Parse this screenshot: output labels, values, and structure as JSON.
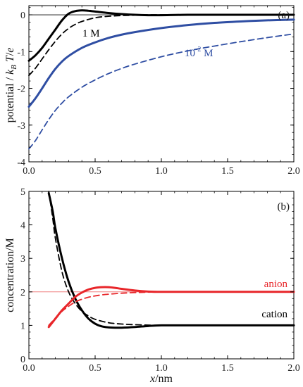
{
  "chart_data": [
    {
      "type": "line",
      "panel_label": "(a)",
      "ylabel": "potential / k_B T/e",
      "ylabel_parts": {
        "pre": "potential / ",
        "k": "k",
        "B": "B",
        "T": "T",
        "slash": "/",
        "e": "e"
      },
      "xlim": [
        0.0,
        2.0
      ],
      "ylim": [
        -4,
        0.25
      ],
      "xticks": [
        "0.0",
        "0.5",
        "1.0",
        "1.5",
        "2.0"
      ],
      "yticks": [
        "0",
        "-1",
        "-2",
        "-3",
        "-4"
      ],
      "grid": false,
      "annotations": [
        {
          "text": "1 M",
          "color": "#000000"
        },
        {
          "text": "10",
          "sup": "-2",
          "suffix": " M",
          "color": "#2f4ea3"
        }
      ],
      "series": [
        {
          "color": "#000000",
          "style": "solid",
          "x": [
            0.0,
            0.05,
            0.1,
            0.15,
            0.2,
            0.25,
            0.3,
            0.35,
            0.4,
            0.45,
            0.5,
            0.6,
            0.7,
            0.8,
            0.9,
            1.0,
            1.2,
            1.5,
            2.0
          ],
          "y": [
            -1.25,
            -1.1,
            -0.9,
            -0.65,
            -0.4,
            -0.15,
            0.03,
            0.1,
            0.12,
            0.11,
            0.09,
            0.05,
            0.02,
            0.0,
            -0.01,
            -0.01,
            0.0,
            0.0,
            0.0
          ]
        },
        {
          "color": "#000000",
          "style": "dashed",
          "x": [
            0.0,
            0.05,
            0.1,
            0.15,
            0.2,
            0.25,
            0.3,
            0.35,
            0.4,
            0.5,
            0.6,
            0.7,
            0.8,
            0.9,
            1.0,
            1.2,
            1.5,
            2.0
          ],
          "y": [
            -1.65,
            -1.45,
            -1.2,
            -0.95,
            -0.72,
            -0.52,
            -0.37,
            -0.26,
            -0.18,
            -0.08,
            -0.04,
            -0.02,
            -0.01,
            0.0,
            0.0,
            0.0,
            0.0,
            0.0
          ]
        },
        {
          "color": "#2f4ea3",
          "style": "solid",
          "x": [
            0.0,
            0.05,
            0.1,
            0.15,
            0.2,
            0.25,
            0.3,
            0.4,
            0.5,
            0.6,
            0.7,
            0.8,
            1.0,
            1.2,
            1.4,
            1.6,
            1.8,
            2.0
          ],
          "y": [
            -2.5,
            -2.27,
            -2.0,
            -1.72,
            -1.47,
            -1.27,
            -1.12,
            -0.9,
            -0.75,
            -0.63,
            -0.54,
            -0.47,
            -0.36,
            -0.28,
            -0.22,
            -0.18,
            -0.15,
            -0.13
          ]
        },
        {
          "color": "#2f4ea3",
          "style": "dashed",
          "x": [
            0.0,
            0.05,
            0.1,
            0.15,
            0.2,
            0.25,
            0.3,
            0.4,
            0.5,
            0.6,
            0.7,
            0.8,
            1.0,
            1.2,
            1.4,
            1.6,
            1.8,
            2.0
          ],
          "y": [
            -3.65,
            -3.42,
            -3.13,
            -2.85,
            -2.6,
            -2.4,
            -2.23,
            -1.97,
            -1.77,
            -1.6,
            -1.46,
            -1.34,
            -1.14,
            -0.98,
            -0.85,
            -0.73,
            -0.62,
            -0.52
          ]
        }
      ]
    },
    {
      "type": "line",
      "panel_label": "(b)",
      "ylabel": "concentration/M",
      "xlabel": "x/nm",
      "xlabel_parts": {
        "x": "x",
        "rest": "/nm"
      },
      "xlim": [
        0.0,
        2.0
      ],
      "ylim": [
        0,
        5
      ],
      "xticks": [
        "0.0",
        "0.5",
        "1.0",
        "1.5",
        "2.0"
      ],
      "yticks": [
        "0",
        "1",
        "2",
        "3",
        "4",
        "5"
      ],
      "grid": false,
      "reference_line": {
        "y": 2,
        "color": "#f08080"
      },
      "annotations": [
        {
          "text": "anion",
          "color": "#e8262a"
        },
        {
          "text": "cation",
          "color": "#000000"
        }
      ],
      "series": [
        {
          "color": "#000000",
          "style": "solid",
          "x": [
            0.15,
            0.18,
            0.2,
            0.25,
            0.3,
            0.35,
            0.4,
            0.45,
            0.5,
            0.55,
            0.6,
            0.65,
            0.7,
            0.8,
            0.9,
            1.0,
            1.2,
            1.5,
            2.0
          ],
          "y": [
            4.95,
            4.4,
            3.9,
            3.0,
            2.3,
            1.8,
            1.45,
            1.2,
            1.05,
            0.97,
            0.94,
            0.93,
            0.93,
            0.95,
            0.98,
            1.0,
            1.0,
            1.0,
            1.0
          ]
        },
        {
          "color": "#000000",
          "style": "dashed",
          "x": [
            0.15,
            0.18,
            0.2,
            0.25,
            0.3,
            0.35,
            0.4,
            0.45,
            0.5,
            0.6,
            0.7,
            0.8,
            1.0,
            1.2,
            1.5,
            2.0
          ],
          "y": [
            5.0,
            4.2,
            3.6,
            2.6,
            2.0,
            1.65,
            1.42,
            1.28,
            1.18,
            1.08,
            1.04,
            1.02,
            1.0,
            1.0,
            1.0,
            1.0
          ]
        },
        {
          "color": "#e8262a",
          "style": "solid",
          "x": [
            0.15,
            0.2,
            0.25,
            0.3,
            0.35,
            0.4,
            0.45,
            0.5,
            0.55,
            0.6,
            0.65,
            0.7,
            0.8,
            0.9,
            1.0,
            1.2,
            1.5,
            2.0
          ],
          "y": [
            0.95,
            1.2,
            1.45,
            1.65,
            1.85,
            1.98,
            2.07,
            2.12,
            2.14,
            2.14,
            2.12,
            2.09,
            2.04,
            2.01,
            2.0,
            2.0,
            2.0,
            2.0
          ]
        },
        {
          "color": "#e8262a",
          "style": "dashed",
          "x": [
            0.15,
            0.2,
            0.25,
            0.3,
            0.35,
            0.4,
            0.45,
            0.5,
            0.55,
            0.6,
            0.7,
            0.8,
            0.9,
            1.0,
            1.2,
            1.5,
            2.0
          ],
          "y": [
            1.0,
            1.22,
            1.42,
            1.57,
            1.7,
            1.78,
            1.84,
            1.88,
            1.91,
            1.93,
            1.96,
            1.98,
            1.99,
            2.0,
            2.0,
            2.0,
            2.0
          ]
        }
      ]
    }
  ]
}
